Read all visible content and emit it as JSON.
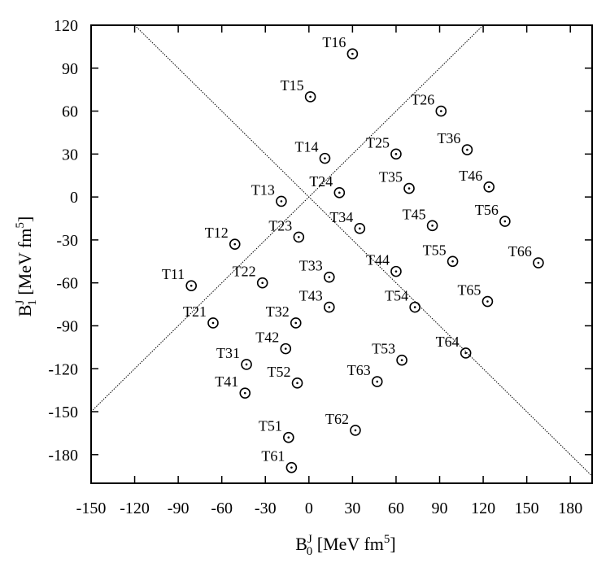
{
  "chart_data": {
    "type": "scatter",
    "xlabel": {
      "main": "B",
      "sup": "J",
      "sub": "0",
      "unit_pre": " [MeV fm",
      "unit_sup": "5",
      "unit_post": "]"
    },
    "ylabel": {
      "main": "B",
      "sup": "J",
      "sub": "1",
      "unit_pre": " [MeV fm",
      "unit_sup": "5",
      "unit_post": "]"
    },
    "xlim": [
      -150,
      195
    ],
    "ylim": [
      -200,
      120
    ],
    "x_ticks": [
      -150,
      -120,
      -90,
      -60,
      -30,
      0,
      30,
      60,
      90,
      120,
      150,
      180
    ],
    "y_ticks": [
      120,
      90,
      60,
      30,
      0,
      -30,
      -60,
      -90,
      -120,
      -150,
      -180
    ],
    "reference_lines": [
      {
        "slope": 1,
        "intercept": 0
      },
      {
        "slope": -1,
        "intercept": 0
      }
    ],
    "points": [
      {
        "label": "T11",
        "x": -81,
        "y": -62
      },
      {
        "label": "T12",
        "x": -51,
        "y": -33
      },
      {
        "label": "T13",
        "x": -19,
        "y": -3
      },
      {
        "label": "T14",
        "x": 11,
        "y": 27
      },
      {
        "label": "T15",
        "x": 1,
        "y": 70
      },
      {
        "label": "T16",
        "x": 30,
        "y": 100
      },
      {
        "label": "T21",
        "x": -66,
        "y": -88
      },
      {
        "label": "T22",
        "x": -32,
        "y": -60
      },
      {
        "label": "T23",
        "x": -7,
        "y": -28
      },
      {
        "label": "T24",
        "x": 21,
        "y": 3
      },
      {
        "label": "T25",
        "x": 60,
        "y": 30
      },
      {
        "label": "T26",
        "x": 91,
        "y": 60
      },
      {
        "label": "T31",
        "x": -43,
        "y": -117
      },
      {
        "label": "T32",
        "x": -9,
        "y": -88
      },
      {
        "label": "T33",
        "x": 14,
        "y": -56
      },
      {
        "label": "T34",
        "x": 35,
        "y": -22
      },
      {
        "label": "T35",
        "x": 69,
        "y": 6
      },
      {
        "label": "T36",
        "x": 109,
        "y": 33
      },
      {
        "label": "T41",
        "x": -44,
        "y": -137
      },
      {
        "label": "T42",
        "x": -16,
        "y": -106
      },
      {
        "label": "T43",
        "x": 14,
        "y": -77
      },
      {
        "label": "T44",
        "x": 60,
        "y": -52
      },
      {
        "label": "T45",
        "x": 85,
        "y": -20
      },
      {
        "label": "T46",
        "x": 124,
        "y": 7
      },
      {
        "label": "T51",
        "x": -14,
        "y": -168
      },
      {
        "label": "T52",
        "x": -8,
        "y": -130
      },
      {
        "label": "T53",
        "x": 64,
        "y": -114
      },
      {
        "label": "T54",
        "x": 73,
        "y": -77
      },
      {
        "label": "T55",
        "x": 99,
        "y": -45
      },
      {
        "label": "T56",
        "x": 135,
        "y": -17
      },
      {
        "label": "T61",
        "x": -12,
        "y": -189
      },
      {
        "label": "T62",
        "x": 32,
        "y": -163
      },
      {
        "label": "T63",
        "x": 47,
        "y": -129
      },
      {
        "label": "T64",
        "x": 108,
        "y": -109
      },
      {
        "label": "T65",
        "x": 123,
        "y": -73
      },
      {
        "label": "T66",
        "x": 158,
        "y": -46
      }
    ]
  }
}
